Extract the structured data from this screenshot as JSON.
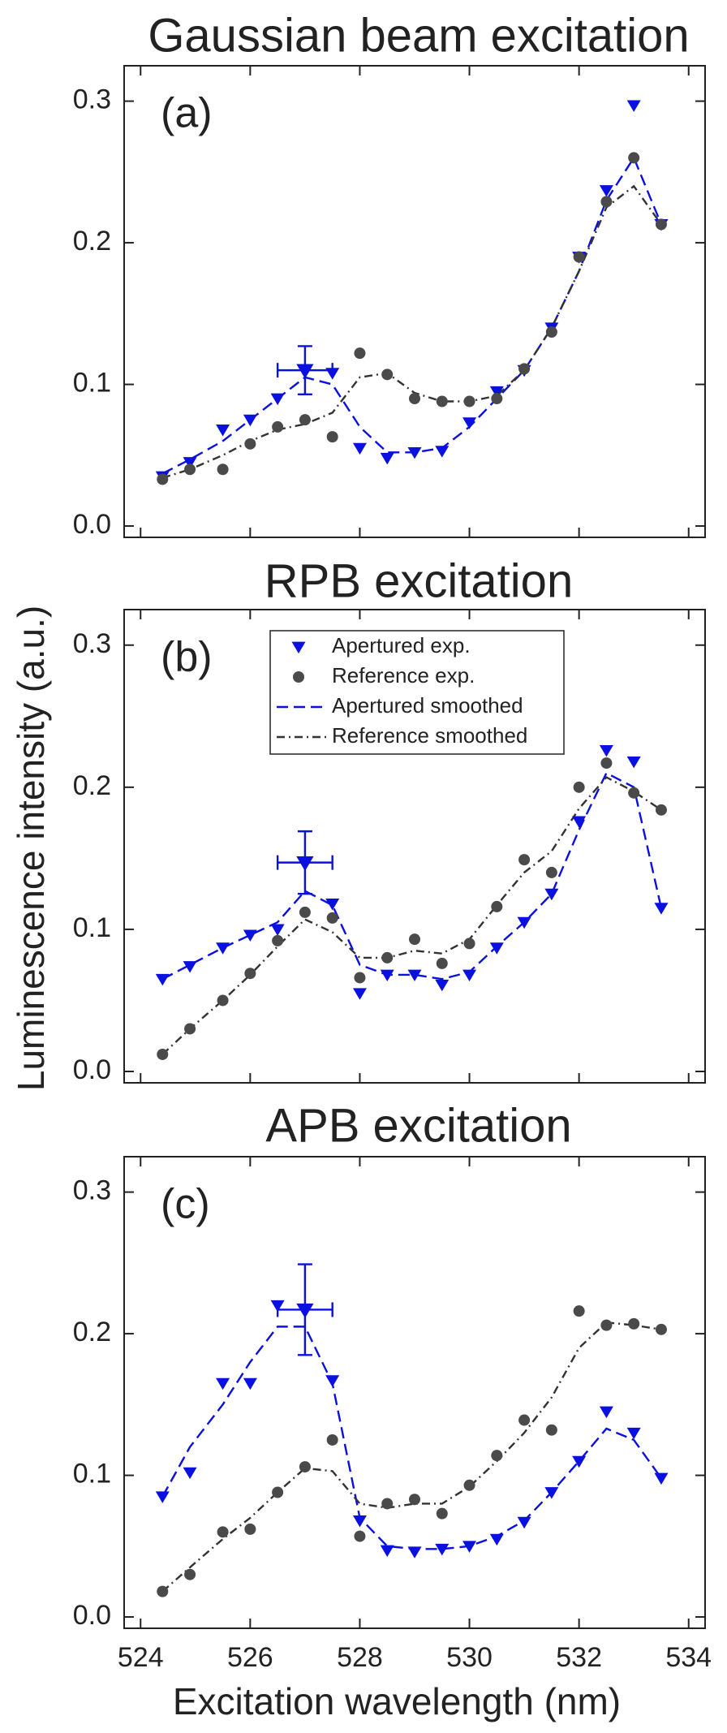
{
  "chart_data": [
    {
      "type": "line",
      "title": "Gaussian beam excitation",
      "panel_label": "(a)",
      "x": [
        524.4,
        524.9,
        525.5,
        526,
        526.5,
        527,
        527.5,
        528,
        528.5,
        529,
        529.5,
        530,
        530.5,
        531,
        531.5,
        532,
        532.5,
        533,
        533.5
      ],
      "series": [
        {
          "color": "#0a10e0",
          "marker": "triangle",
          "values": [
            0.035,
            0.045,
            0.068,
            0.075,
            0.09,
            0.11,
            0.108,
            0.055,
            0.048,
            0.052,
            0.053,
            0.073,
            0.095,
            0.11,
            0.14,
            0.19,
            0.237,
            0.297,
            0.213
          ]
        },
        {
          "color": "#4a4a4a",
          "marker": "circle",
          "values": [
            0.033,
            0.04,
            0.04,
            0.058,
            0.07,
            0.075,
            0.063,
            0.122,
            0.107,
            0.09,
            0.088,
            0.088,
            0.09,
            0.111,
            0.137,
            0.19,
            0.229,
            0.26,
            0.213
          ]
        },
        {
          "color": "#0a10e0",
          "linestyle": "dashed",
          "values": [
            0.037,
            0.047,
            0.06,
            0.075,
            0.09,
            0.105,
            0.1,
            0.07,
            0.052,
            0.052,
            0.055,
            0.07,
            0.09,
            0.11,
            0.14,
            0.18,
            0.23,
            0.26,
            0.213
          ]
        },
        {
          "color": "#333333",
          "linestyle": "dashdot",
          "values": [
            0.034,
            0.04,
            0.05,
            0.06,
            0.068,
            0.072,
            0.08,
            0.105,
            0.108,
            0.094,
            0.088,
            0.088,
            0.092,
            0.11,
            0.14,
            0.18,
            0.225,
            0.24,
            0.213
          ]
        }
      ],
      "errorbar": {
        "x": 527,
        "y": 0.11,
        "xerr": 0.5,
        "yerr": 0.017,
        "color": "#0a10e0"
      },
      "xlim": [
        523.7,
        534.3
      ],
      "xticks": [
        524,
        526,
        528,
        530,
        532,
        534
      ],
      "show_xtick_labels": false,
      "ylim": [
        -0.008,
        0.325
      ],
      "yticks": [
        {
          "value": 0,
          "label": "0.0"
        },
        0.1,
        0.2,
        0.3
      ]
    },
    {
      "type": "line",
      "title": "RPB excitation",
      "panel_label": "(b)",
      "x": [
        524.4,
        524.9,
        525.5,
        526,
        526.5,
        527,
        527.5,
        528,
        528.5,
        529,
        529.5,
        530,
        530.5,
        531,
        531.5,
        532,
        532.5,
        533,
        533.5
      ],
      "series": [
        {
          "name": "Apertured exp.",
          "color": "#0a10e0",
          "marker": "triangle",
          "values": [
            0.065,
            0.074,
            0.087,
            0.096,
            0.1,
            0.147,
            0.118,
            0.055,
            0.068,
            0.068,
            0.061,
            0.068,
            0.087,
            0.105,
            0.125,
            0.176,
            0.226,
            0.218,
            0.115
          ]
        },
        {
          "name": "Reference exp.",
          "color": "#4a4a4a",
          "marker": "circle",
          "values": [
            0.012,
            0.03,
            0.05,
            0.069,
            0.092,
            0.112,
            0.108,
            0.066,
            0.08,
            0.093,
            0.076,
            0.09,
            0.116,
            0.149,
            0.14,
            0.2,
            0.217,
            0.196,
            0.184
          ]
        },
        {
          "name": "Apertured smoothed",
          "color": "#0a10e0",
          "linestyle": "dashed",
          "values": [
            0.065,
            0.075,
            0.087,
            0.096,
            0.105,
            0.127,
            0.117,
            0.075,
            0.068,
            0.068,
            0.065,
            0.07,
            0.088,
            0.105,
            0.125,
            0.17,
            0.21,
            0.2,
            0.115
          ]
        },
        {
          "name": "Reference smoothed",
          "color": "#333333",
          "linestyle": "dashdot",
          "values": [
            0.012,
            0.03,
            0.05,
            0.068,
            0.088,
            0.107,
            0.098,
            0.08,
            0.08,
            0.085,
            0.083,
            0.093,
            0.117,
            0.14,
            0.155,
            0.185,
            0.207,
            0.197,
            0.184
          ]
        }
      ],
      "errorbar": {
        "x": 527,
        "y": 0.147,
        "xerr": 0.5,
        "yerr": 0.022,
        "color": "#0a10e0"
      },
      "legend": "upper-center",
      "ylabel": "Luminescence intensity (a.u.)",
      "xlim": [
        523.7,
        534.3
      ],
      "xticks": [
        524,
        526,
        528,
        530,
        532,
        534
      ],
      "show_xtick_labels": false,
      "ylim": [
        -0.008,
        0.325
      ],
      "yticks": [
        {
          "value": 0,
          "label": "0.0"
        },
        0.1,
        0.2,
        0.3
      ]
    },
    {
      "type": "line",
      "title": "APB excitation",
      "panel_label": "(c)",
      "x": [
        524.4,
        524.9,
        525.5,
        526,
        526.5,
        527,
        527.5,
        528,
        528.5,
        529,
        529.5,
        530,
        530.5,
        531,
        531.5,
        532,
        532.5,
        533,
        533.5
      ],
      "series": [
        {
          "color": "#0a10e0",
          "marker": "triangle",
          "values": [
            0.085,
            0.102,
            0.165,
            0.165,
            0.22,
            0.217,
            0.167,
            0.068,
            0.047,
            0.046,
            0.048,
            0.05,
            0.055,
            0.067,
            0.088,
            0.11,
            0.145,
            0.13,
            0.098
          ]
        },
        {
          "color": "#4a4a4a",
          "marker": "circle",
          "values": [
            0.018,
            0.03,
            0.06,
            0.062,
            0.088,
            0.106,
            0.125,
            0.057,
            0.08,
            0.083,
            0.073,
            0.093,
            0.114,
            0.139,
            0.132,
            0.216,
            0.206,
            0.207,
            0.203
          ]
        },
        {
          "color": "#0a10e0",
          "linestyle": "dashed",
          "values": [
            0.085,
            0.12,
            0.15,
            0.18,
            0.205,
            0.205,
            0.165,
            0.07,
            0.05,
            0.048,
            0.048,
            0.05,
            0.057,
            0.068,
            0.088,
            0.11,
            0.133,
            0.125,
            0.098
          ]
        },
        {
          "color": "#333333",
          "linestyle": "dashdot",
          "values": [
            0.018,
            0.035,
            0.055,
            0.07,
            0.088,
            0.105,
            0.103,
            0.08,
            0.077,
            0.08,
            0.08,
            0.092,
            0.11,
            0.13,
            0.155,
            0.19,
            0.208,
            0.206,
            0.203
          ]
        }
      ],
      "errorbar": {
        "x": 527,
        "y": 0.217,
        "xerr": 0.5,
        "yerr": 0.032,
        "color": "#0a10e0"
      },
      "xlabel": "Excitation wavelength (nm)",
      "xlim": [
        523.7,
        534.3
      ],
      "xticks": [
        524,
        526,
        528,
        530,
        532,
        534
      ],
      "show_xtick_labels": true,
      "ylim": [
        -0.008,
        0.325
      ],
      "yticks": [
        {
          "value": 0,
          "label": "0.0"
        },
        0.1,
        0.2,
        0.3
      ]
    }
  ]
}
